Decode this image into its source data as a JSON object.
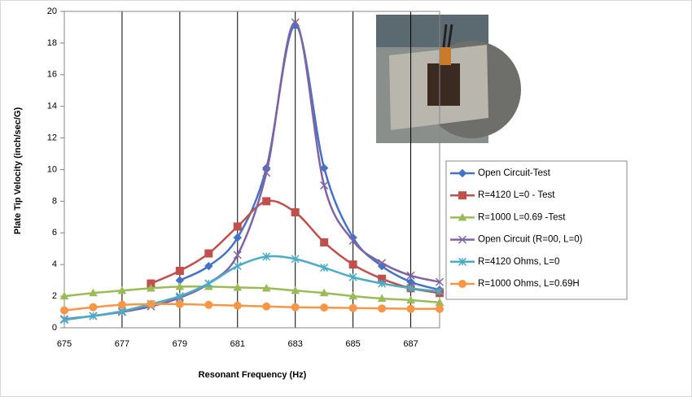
{
  "chart_data": {
    "type": "line",
    "smooth": true,
    "y_label": "Plate Tip Velocity (inch/sec/G)",
    "x_label": "Resonant Frequency (Hz)",
    "x": [
      675,
      676,
      677,
      678,
      679,
      680,
      681,
      682,
      683,
      684,
      685,
      686,
      687,
      688
    ],
    "xlim": [
      675,
      688
    ],
    "xticks": [
      675,
      677,
      679,
      681,
      683,
      685,
      687
    ],
    "ylim": [
      0,
      20
    ],
    "yticks": [
      0,
      2,
      4,
      6,
      8,
      10,
      12,
      14,
      16,
      18,
      20
    ],
    "grid": "x",
    "legend": "right",
    "series": [
      {
        "name": "Open Circuit-Test",
        "color": "#4472c4",
        "marker": "diamond",
        "values": [
          null,
          null,
          null,
          null,
          3.0,
          3.9,
          5.7,
          10.1,
          19.1,
          10.1,
          5.7,
          3.9,
          2.9,
          2.4
        ]
      },
      {
        "name": "R=4120 L=0 - Test",
        "color": "#c0504d",
        "marker": "square",
        "values": [
          null,
          null,
          null,
          2.8,
          3.6,
          4.7,
          6.4,
          8.0,
          7.3,
          5.4,
          4.0,
          3.1,
          2.5,
          2.2
        ]
      },
      {
        "name": "R=1000 L=0.69 -Test",
        "color": "#9bbb59",
        "marker": "triangle",
        "values": [
          2.0,
          2.2,
          2.35,
          2.5,
          2.6,
          2.6,
          2.55,
          2.5,
          2.35,
          2.2,
          2.0,
          1.85,
          1.75,
          1.6
        ]
      },
      {
        "name": "Open Circuit (R=00, L=0)",
        "color": "#8064a2",
        "marker": "x",
        "values": [
          0.55,
          0.75,
          1.0,
          1.35,
          1.9,
          2.8,
          4.6,
          9.8,
          19.3,
          9.0,
          5.5,
          4.1,
          3.3,
          2.9
        ]
      },
      {
        "name": "R=4120 Ohms, L=0",
        "color": "#4bacc6",
        "marker": "star",
        "values": [
          0.5,
          0.75,
          1.05,
          1.5,
          2.0,
          2.8,
          3.9,
          4.5,
          4.35,
          3.8,
          3.2,
          2.8,
          2.5,
          2.3
        ]
      },
      {
        "name": "R=1000 Ohms, L=0.69H",
        "color": "#f79646",
        "marker": "circle",
        "values": [
          1.1,
          1.3,
          1.45,
          1.5,
          1.5,
          1.45,
          1.4,
          1.35,
          1.3,
          1.28,
          1.25,
          1.22,
          1.2,
          1.2
        ]
      }
    ]
  }
}
